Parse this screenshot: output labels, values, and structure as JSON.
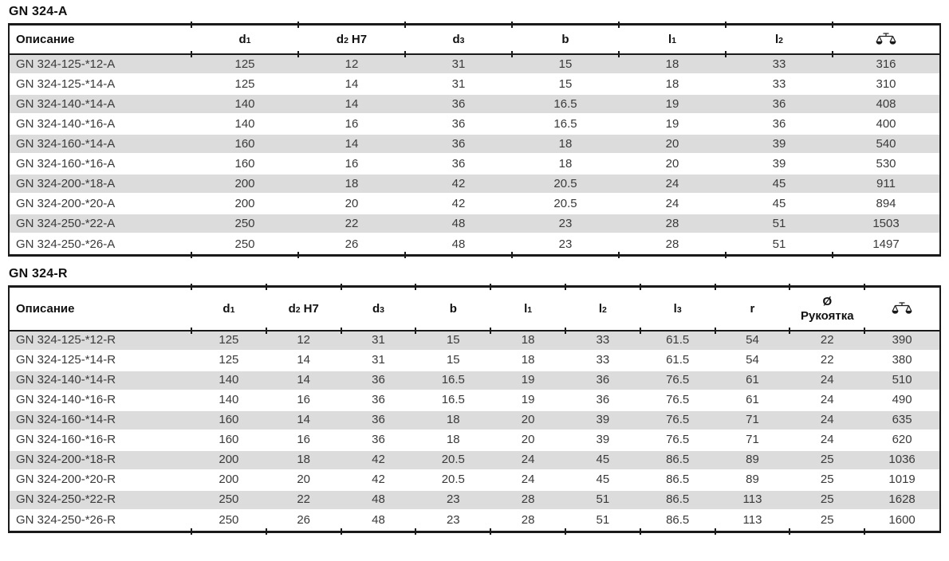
{
  "tables": [
    {
      "title": "GN 324-A",
      "columns": [
        {
          "label": "Описание"
        },
        {
          "base": "d",
          "sub": "1"
        },
        {
          "base": "d",
          "sub": "2",
          "rest": "H7"
        },
        {
          "base": "d",
          "sub": "3"
        },
        {
          "base": "b"
        },
        {
          "base": "l",
          "sub": "1"
        },
        {
          "base": "l",
          "sub": "2"
        },
        {
          "icon": "weight-scale-icon"
        }
      ],
      "rows": [
        [
          "GN 324-125-*12-A",
          "125",
          "12",
          "31",
          "15",
          "18",
          "33",
          "316"
        ],
        [
          "GN 324-125-*14-A",
          "125",
          "14",
          "31",
          "15",
          "18",
          "33",
          "310"
        ],
        [
          "GN 324-140-*14-A",
          "140",
          "14",
          "36",
          "16.5",
          "19",
          "36",
          "408"
        ],
        [
          "GN 324-140-*16-A",
          "140",
          "16",
          "36",
          "16.5",
          "19",
          "36",
          "400"
        ],
        [
          "GN 324-160-*14-A",
          "160",
          "14",
          "36",
          "18",
          "20",
          "39",
          "540"
        ],
        [
          "GN 324-160-*16-A",
          "160",
          "16",
          "36",
          "18",
          "20",
          "39",
          "530"
        ],
        [
          "GN 324-200-*18-A",
          "200",
          "18",
          "42",
          "20.5",
          "24",
          "45",
          "911"
        ],
        [
          "GN 324-200-*20-A",
          "200",
          "20",
          "42",
          "20.5",
          "24",
          "45",
          "894"
        ],
        [
          "GN 324-250-*22-A",
          "250",
          "22",
          "48",
          "23",
          "28",
          "51",
          "1503"
        ],
        [
          "GN 324-250-*26-A",
          "250",
          "26",
          "48",
          "23",
          "28",
          "51",
          "1497"
        ]
      ]
    },
    {
      "title": "GN 324-R",
      "columns": [
        {
          "label": "Описание"
        },
        {
          "base": "d",
          "sub": "1"
        },
        {
          "base": "d",
          "sub": "2",
          "rest": "H7"
        },
        {
          "base": "d",
          "sub": "3"
        },
        {
          "base": "b"
        },
        {
          "base": "l",
          "sub": "1"
        },
        {
          "base": "l",
          "sub": "2"
        },
        {
          "base": "l",
          "sub": "3"
        },
        {
          "base": "r"
        },
        {
          "base": "Ø",
          "line2": "Рукоятка"
        },
        {
          "icon": "weight-scale-icon"
        }
      ],
      "rows": [
        [
          "GN 324-125-*12-R",
          "125",
          "12",
          "31",
          "15",
          "18",
          "33",
          "61.5",
          "54",
          "22",
          "390"
        ],
        [
          "GN 324-125-*14-R",
          "125",
          "14",
          "31",
          "15",
          "18",
          "33",
          "61.5",
          "54",
          "22",
          "380"
        ],
        [
          "GN 324-140-*14-R",
          "140",
          "14",
          "36",
          "16.5",
          "19",
          "36",
          "76.5",
          "61",
          "24",
          "510"
        ],
        [
          "GN 324-140-*16-R",
          "140",
          "16",
          "36",
          "16.5",
          "19",
          "36",
          "76.5",
          "61",
          "24",
          "490"
        ],
        [
          "GN 324-160-*14-R",
          "160",
          "14",
          "36",
          "18",
          "20",
          "39",
          "76.5",
          "71",
          "24",
          "635"
        ],
        [
          "GN 324-160-*16-R",
          "160",
          "16",
          "36",
          "18",
          "20",
          "39",
          "76.5",
          "71",
          "24",
          "620"
        ],
        [
          "GN 324-200-*18-R",
          "200",
          "18",
          "42",
          "20.5",
          "24",
          "45",
          "86.5",
          "89",
          "25",
          "1036"
        ],
        [
          "GN 324-200-*20-R",
          "200",
          "20",
          "42",
          "20.5",
          "24",
          "45",
          "86.5",
          "89",
          "25",
          "1019"
        ],
        [
          "GN 324-250-*22-R",
          "250",
          "22",
          "48",
          "23",
          "28",
          "51",
          "86.5",
          "113",
          "25",
          "1628"
        ],
        [
          "GN 324-250-*26-R",
          "250",
          "26",
          "48",
          "23",
          "28",
          "51",
          "86.5",
          "113",
          "25",
          "1600"
        ]
      ]
    }
  ],
  "colors": {
    "border": "#1a1a1a",
    "row_shade": "#dcdcdc",
    "header_text": "#111111",
    "body_text": "#3a3a3a",
    "background": "#ffffff"
  }
}
